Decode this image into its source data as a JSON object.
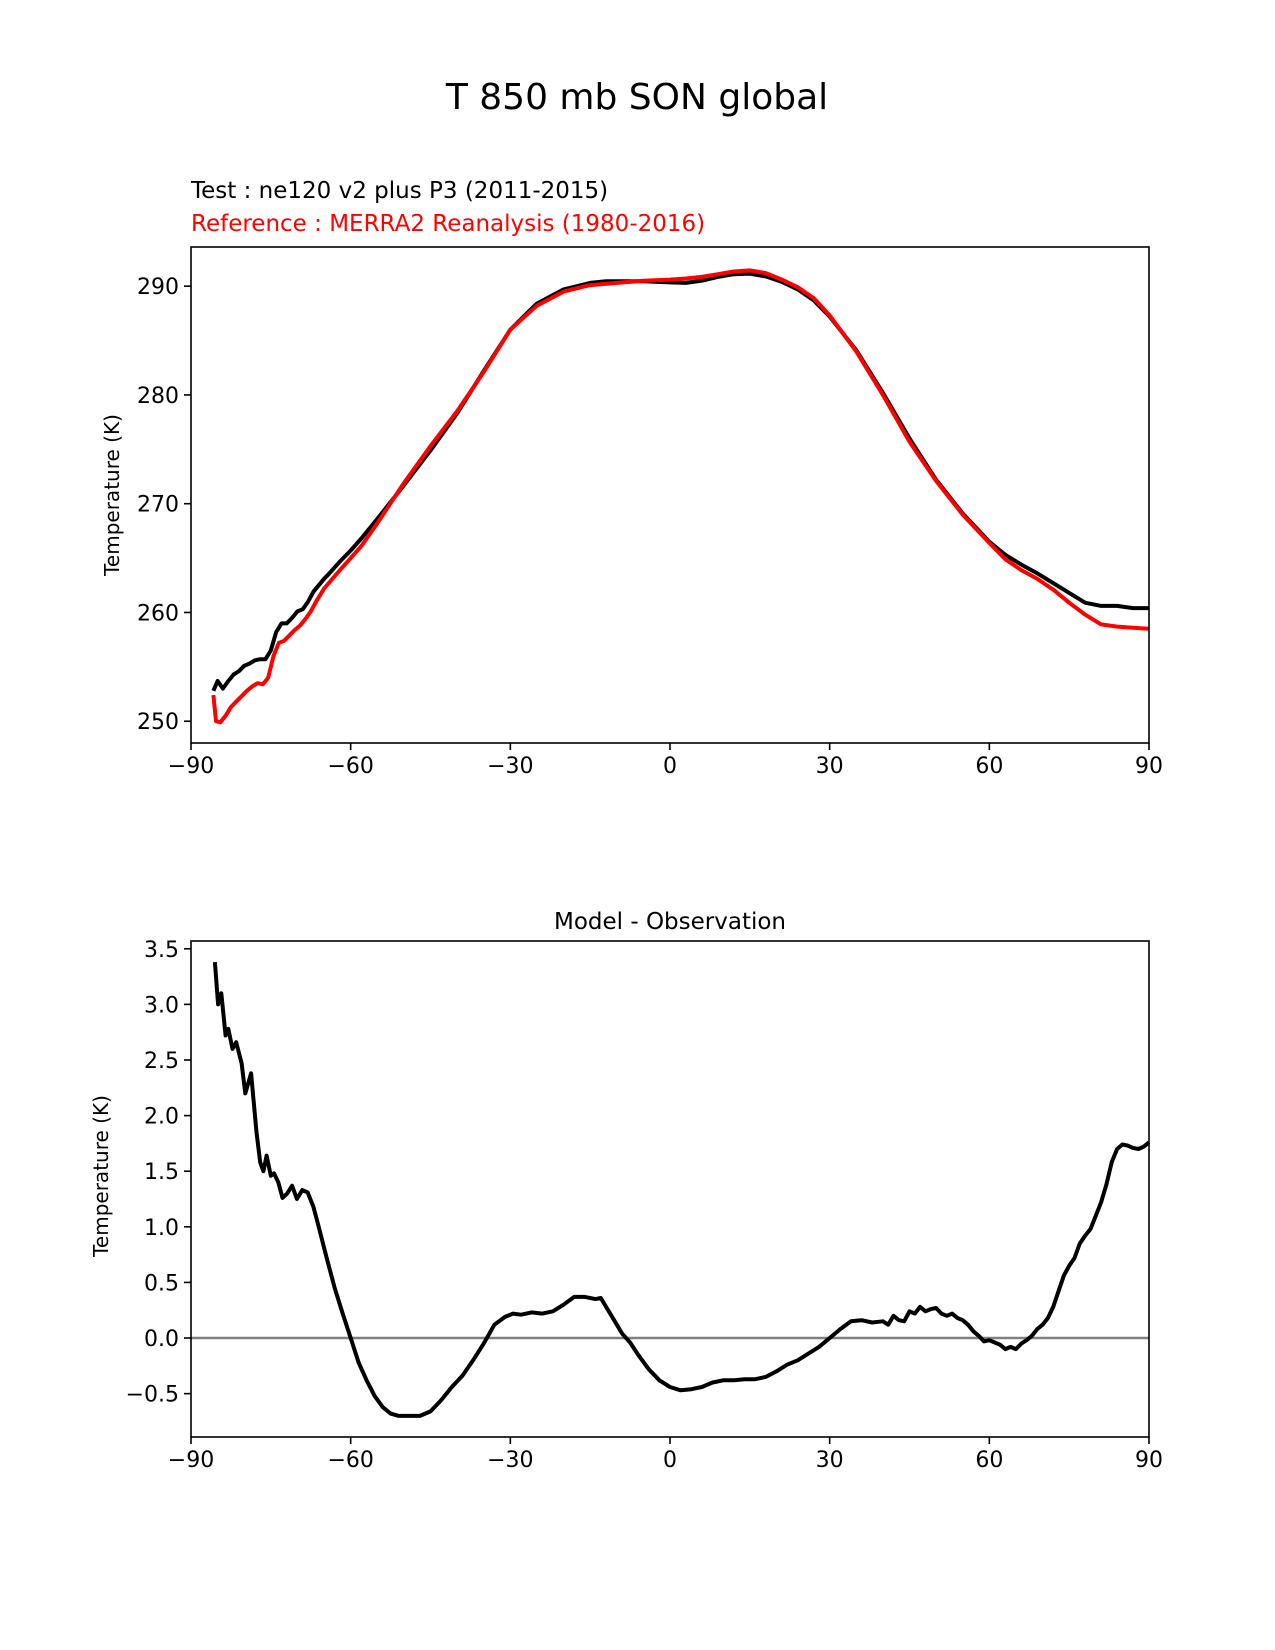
{
  "figure_title": "T 850 mb SON global",
  "colors": {
    "test": "#000000",
    "reference": "#ff0000",
    "zero_line": "#808080"
  },
  "chart_data": [
    {
      "type": "line",
      "test_label": "Test : ne120 v2 plus P3 (2011-2015)",
      "reference_label": "Reference : MERRA2 Reanalysis (1980-2016)",
      "title": "",
      "xlabel": "",
      "ylabel": "Temperature (K)",
      "xlim": [
        -90,
        90
      ],
      "ylim": [
        248,
        293.6
      ],
      "xticks": [
        -90,
        -60,
        -30,
        0,
        30,
        60,
        90
      ],
      "yticks": [
        250,
        260,
        270,
        280,
        290
      ],
      "series": [
        {
          "name": "Test",
          "color": "#000000",
          "x": [
            -85.8,
            -85,
            -84,
            -83,
            -82,
            -81,
            -80,
            -79,
            -78,
            -77,
            -76,
            -75,
            -74,
            -73,
            -72,
            -71,
            -70,
            -69,
            -68,
            -67,
            -66,
            -65,
            -64,
            -62,
            -60,
            -58,
            -55,
            -50,
            -45,
            -40,
            -35,
            -30,
            -25,
            -20,
            -15,
            -12,
            -10,
            -5,
            0,
            3,
            6,
            9,
            12,
            15,
            18,
            21,
            24,
            27,
            30,
            35,
            40,
            45,
            50,
            55,
            60,
            63,
            66,
            69,
            72,
            75,
            78,
            81,
            84,
            87,
            90
          ],
          "y": [
            252.8,
            253.7,
            253.0,
            253.7,
            254.3,
            254.6,
            255.1,
            255.3,
            255.6,
            255.7,
            255.7,
            256.5,
            258.2,
            259.0,
            259.0,
            259.5,
            260.1,
            260.3,
            261.0,
            261.9,
            262.5,
            263.1,
            263.6,
            264.7,
            265.7,
            266.8,
            268.6,
            271.7,
            274.9,
            278.3,
            282.2,
            286.0,
            288.4,
            289.7,
            290.3,
            290.45,
            290.45,
            290.45,
            290.35,
            290.3,
            290.5,
            290.85,
            291.1,
            291.15,
            290.9,
            290.4,
            289.7,
            288.7,
            287.2,
            284.1,
            280.2,
            276.0,
            272.2,
            269.1,
            266.5,
            265.3,
            264.4,
            263.6,
            262.7,
            261.8,
            260.9,
            260.6,
            260.6,
            260.4,
            260.4
          ]
        },
        {
          "name": "Reference",
          "color": "#ff0000",
          "x": [
            -85.8,
            -85.3,
            -84.5,
            -83.5,
            -82.5,
            -81.5,
            -80.5,
            -79.5,
            -78.5,
            -77.5,
            -76.5,
            -75.5,
            -74.5,
            -73.5,
            -72.5,
            -71.5,
            -70.5,
            -69.5,
            -68.5,
            -67.5,
            -66.5,
            -65,
            -62,
            -60,
            -58,
            -55,
            -50,
            -45,
            -40,
            -35,
            -30,
            -25,
            -20,
            -15,
            -10,
            -5,
            0,
            3,
            6,
            9,
            12,
            15,
            18,
            21,
            24,
            27,
            30,
            35,
            40,
            45,
            50,
            55,
            60,
            63,
            66,
            69,
            72,
            75,
            78,
            81,
            84,
            87,
            90
          ],
          "y": [
            252.4,
            250.0,
            249.9,
            250.5,
            251.3,
            251.8,
            252.3,
            252.8,
            253.2,
            253.5,
            253.4,
            254.0,
            256.0,
            257.2,
            257.4,
            257.9,
            258.4,
            258.8,
            259.4,
            260.1,
            261.0,
            262.2,
            263.9,
            265.0,
            266.1,
            268.2,
            271.9,
            275.3,
            278.5,
            282.1,
            286.0,
            288.2,
            289.5,
            290.1,
            290.3,
            290.5,
            290.6,
            290.7,
            290.85,
            291.1,
            291.35,
            291.45,
            291.2,
            290.6,
            289.9,
            288.9,
            287.3,
            284.0,
            280.0,
            275.7,
            272.1,
            269.0,
            266.4,
            264.9,
            263.9,
            263.1,
            262.1,
            260.9,
            259.8,
            258.9,
            258.7,
            258.6,
            258.5
          ]
        }
      ]
    },
    {
      "type": "line",
      "title": "Model - Observation",
      "xlabel": "",
      "ylabel": "Temperature (K)",
      "xlim": [
        -90,
        90
      ],
      "ylim": [
        -0.89,
        3.57
      ],
      "xticks": [
        -90,
        -60,
        -30,
        0,
        30,
        60,
        90
      ],
      "yticks": [
        -0.5,
        0.0,
        0.5,
        1.0,
        1.5,
        2.0,
        2.5,
        3.0,
        3.5
      ],
      "ytick_labels": [
        "−0.5",
        "0.0",
        "0.5",
        "1.0",
        "1.5",
        "2.0",
        "2.5",
        "3.0",
        "3.5"
      ],
      "zero_line": 0,
      "series": [
        {
          "name": "Model - Observation",
          "color": "#000000",
          "x": [
            -85.5,
            -84.9,
            -84.3,
            -83.5,
            -83.0,
            -82.2,
            -81.5,
            -80.5,
            -79.8,
            -78.7,
            -77.7,
            -77.0,
            -76.4,
            -75.8,
            -75.0,
            -74.4,
            -73.6,
            -72.8,
            -71.9,
            -71.0,
            -70.1,
            -69.1,
            -68.1,
            -67.0,
            -66.0,
            -64.5,
            -63.0,
            -61.5,
            -60.0,
            -58.5,
            -57.0,
            -55.5,
            -54.0,
            -52.5,
            -51.0,
            -49.0,
            -47.0,
            -45.0,
            -43.0,
            -41.0,
            -39.0,
            -37.0,
            -35.0,
            -33.0,
            -31.0,
            -29.5,
            -28.0,
            -26.0,
            -24.0,
            -22.0,
            -20.0,
            -18.0,
            -16.0,
            -14.0,
            -13.0,
            -12.0,
            -11.0,
            -10.0,
            -9.0,
            -7.5,
            -6.0,
            -4.0,
            -2.0,
            0.0,
            2.0,
            4.0,
            6.0,
            8.0,
            10.0,
            12.0,
            14.0,
            16.0,
            18.0,
            20.0,
            22.0,
            24.0,
            26.0,
            28.0,
            30.0,
            32.0,
            34.0,
            36.0,
            38.0,
            40.0,
            41.0,
            42.0,
            43.0,
            44.0,
            45.0,
            46.0,
            47.0,
            48.0,
            49.0,
            50.0,
            51.0,
            52.0,
            53.0,
            54.0,
            55.0,
            56.0,
            57.0,
            58.0,
            59.0,
            60.0,
            61.0,
            62.0,
            63.0,
            64.0,
            65.0,
            66.0,
            67.0,
            68.0,
            69.0,
            70.0,
            71.0,
            72.0,
            73.0,
            74.0,
            75.0,
            76.0,
            77.0,
            78.0,
            79.0,
            80.0,
            81.0,
            82.0,
            83.0,
            84.0,
            85.0,
            86.0,
            87.0,
            88.0,
            89.0,
            90.0
          ],
          "y": [
            3.38,
            3.0,
            3.1,
            2.72,
            2.78,
            2.6,
            2.66,
            2.47,
            2.2,
            2.38,
            1.85,
            1.58,
            1.5,
            1.64,
            1.46,
            1.48,
            1.4,
            1.26,
            1.3,
            1.37,
            1.25,
            1.33,
            1.31,
            1.18,
            1.0,
            0.72,
            0.45,
            0.22,
            0.0,
            -0.22,
            -0.38,
            -0.52,
            -0.62,
            -0.68,
            -0.7,
            -0.7,
            -0.7,
            -0.66,
            -0.56,
            -0.44,
            -0.34,
            -0.2,
            -0.05,
            0.12,
            0.19,
            0.22,
            0.21,
            0.23,
            0.22,
            0.24,
            0.3,
            0.37,
            0.37,
            0.35,
            0.36,
            0.28,
            0.2,
            0.12,
            0.04,
            -0.04,
            -0.15,
            -0.28,
            -0.38,
            -0.44,
            -0.47,
            -0.46,
            -0.44,
            -0.4,
            -0.38,
            -0.38,
            -0.37,
            -0.37,
            -0.35,
            -0.3,
            -0.24,
            -0.2,
            -0.14,
            -0.08,
            0.0,
            0.08,
            0.15,
            0.16,
            0.14,
            0.15,
            0.12,
            0.2,
            0.16,
            0.15,
            0.24,
            0.22,
            0.28,
            0.24,
            0.26,
            0.27,
            0.22,
            0.2,
            0.22,
            0.18,
            0.16,
            0.12,
            0.06,
            0.02,
            -0.03,
            -0.02,
            -0.04,
            -0.06,
            -0.1,
            -0.08,
            -0.1,
            -0.05,
            -0.02,
            0.02,
            0.08,
            0.12,
            0.18,
            0.28,
            0.42,
            0.56,
            0.65,
            0.72,
            0.85,
            0.92,
            0.98,
            1.1,
            1.22,
            1.38,
            1.58,
            1.7,
            1.74,
            1.73,
            1.71,
            1.7,
            1.72,
            1.76
          ]
        }
      ]
    }
  ]
}
